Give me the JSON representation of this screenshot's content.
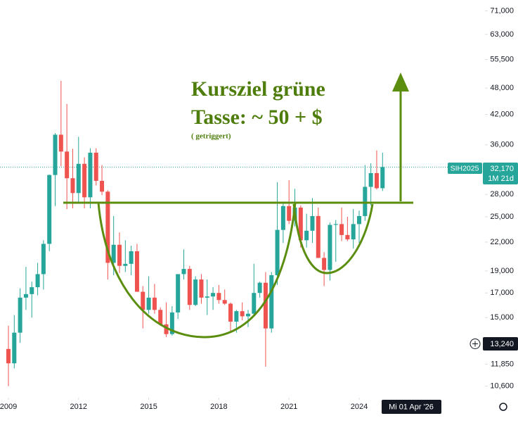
{
  "chart_data": {
    "type": "candlestick",
    "symbol": "SIH2025",
    "annotations": [
      "Kursziel grüne",
      "Tasse: ~ 50 + $",
      "( getriggert)"
    ],
    "up_color": "#26a69a",
    "down_color": "#ef5350",
    "log_scale": true,
    "xlim": [
      2008.64,
      2029.38
    ],
    "xticks": [
      2009,
      2012,
      2015,
      2018,
      2021,
      2024
    ],
    "ylim": [
      10000,
      75000
    ],
    "yticks": [
      {
        "value": 10600,
        "label": "10,600"
      },
      {
        "value": 11850,
        "label": "11,850"
      },
      {
        "value": 15000,
        "label": "15,000"
      },
      {
        "value": 17000,
        "label": "17,000"
      },
      {
        "value": 19000,
        "label": "19,000"
      },
      {
        "value": 22000,
        "label": "22,000"
      },
      {
        "value": 25000,
        "label": "25,000"
      },
      {
        "value": 28000,
        "label": "28,000"
      },
      {
        "value": 36000,
        "label": "36,000"
      },
      {
        "value": 42000,
        "label": "42,000"
      },
      {
        "value": 48000,
        "label": "48,000"
      },
      {
        "value": 55500,
        "label": "55,500"
      },
      {
        "value": 63000,
        "label": "63,000"
      },
      {
        "value": 71000,
        "label": "71,000"
      }
    ],
    "last_price": {
      "value": 32170,
      "label": "32,170"
    },
    "countdown": "1M 21d",
    "crosshair_price": {
      "value": 13240,
      "label": "13,240"
    },
    "crosshair_date": "Mi 01 Apr '26",
    "x": [
      2009,
      2009.25,
      2009.5,
      2009.75,
      2010,
      2010.25,
      2010.5,
      2010.75,
      2011,
      2011.25,
      2011.5,
      2011.75,
      2012,
      2012.25,
      2012.5,
      2012.75,
      2013,
      2013.25,
      2013.5,
      2013.75,
      2014,
      2014.25,
      2014.5,
      2014.75,
      2015,
      2015.25,
      2015.5,
      2015.75,
      2016,
      2016.25,
      2016.5,
      2016.75,
      2017,
      2017.25,
      2017.5,
      2017.75,
      2018,
      2018.25,
      2018.5,
      2018.75,
      2019,
      2019.25,
      2019.5,
      2019.75,
      2020,
      2020.25,
      2020.5,
      2020.75,
      2021,
      2021.25,
      2021.5,
      2021.75,
      2022,
      2022.25,
      2022.5,
      2022.75,
      2023,
      2023.25,
      2023.5,
      2023.75,
      2024,
      2024.25,
      2024.5,
      2024.75,
      2025
    ],
    "open": [
      12800,
      11900,
      13900,
      16600,
      16900,
      17500,
      18700,
      21800,
      30900,
      37900,
      34800,
      30400,
      28200,
      32700,
      27600,
      34600,
      30000,
      28400,
      19800,
      21700,
      19500,
      19700,
      21000,
      17100,
      15600,
      16600,
      15600,
      14500,
      13800,
      15400,
      18700,
      19200,
      16000,
      18200,
      16600,
      16700,
      17000,
      16400,
      16100,
      14700,
      15500,
      15100,
      15300,
      17000,
      17900,
      14200,
      18600,
      23400,
      26400,
      24500,
      26200,
      22200,
      23300,
      25100,
      20300,
      19100,
      24000,
      24100,
      22800,
      22300,
      24100,
      25100,
      29100,
      31200,
      28900
    ],
    "high": [
      14400,
      15200,
      17400,
      19400,
      18000,
      19800,
      22200,
      31000,
      38200,
      49800,
      44300,
      35300,
      37500,
      33800,
      35400,
      35400,
      32500,
      28600,
      25100,
      23100,
      22200,
      21600,
      21800,
      17600,
      18500,
      17800,
      15800,
      16200,
      15900,
      18600,
      21200,
      19500,
      18500,
      18700,
      18200,
      17500,
      17700,
      17300,
      16200,
      15600,
      16200,
      15600,
      19700,
      18000,
      18900,
      18900,
      29800,
      26900,
      30100,
      28800,
      26500,
      25400,
      27500,
      26200,
      20900,
      24300,
      24600,
      26200,
      25000,
      26000,
      25800,
      32500,
      32800,
      35000,
      34600
    ],
    "low": [
      10600,
      11600,
      13200,
      15600,
      15000,
      16800,
      17300,
      21000,
      26400,
      32300,
      26000,
      26100,
      27000,
      26100,
      26100,
      29300,
      27900,
      18200,
      18600,
      18800,
      18900,
      18600,
      17100,
      14200,
      15300,
      15300,
      14400,
      13600,
      13700,
      14900,
      18200,
      15600,
      15900,
      16100,
      15200,
      15600,
      16100,
      16000,
      13900,
      13900,
      14800,
      14300,
      15100,
      16600,
      11700,
      13900,
      17700,
      21900,
      24100,
      23800,
      21400,
      21400,
      21900,
      20300,
      17600,
      18100,
      19900,
      22100,
      22100,
      21300,
      21900,
      24500,
      26500,
      28700,
      28500
    ],
    "close": [
      11900,
      13900,
      16600,
      16900,
      17500,
      18700,
      21800,
      30900,
      37900,
      34800,
      30400,
      28200,
      32700,
      27600,
      34600,
      30000,
      28400,
      19800,
      21700,
      19500,
      19700,
      21000,
      17100,
      15600,
      16600,
      15600,
      14500,
      13800,
      15400,
      18700,
      19200,
      16000,
      18200,
      16600,
      16700,
      17000,
      16400,
      16100,
      14700,
      15500,
      15100,
      15300,
      17000,
      17900,
      14200,
      18600,
      23400,
      26400,
      24500,
      26200,
      22200,
      23300,
      25100,
      20300,
      19100,
      24000,
      24100,
      22800,
      22300,
      24100,
      25100,
      29100,
      31200,
      28900,
      32170
    ]
  }
}
